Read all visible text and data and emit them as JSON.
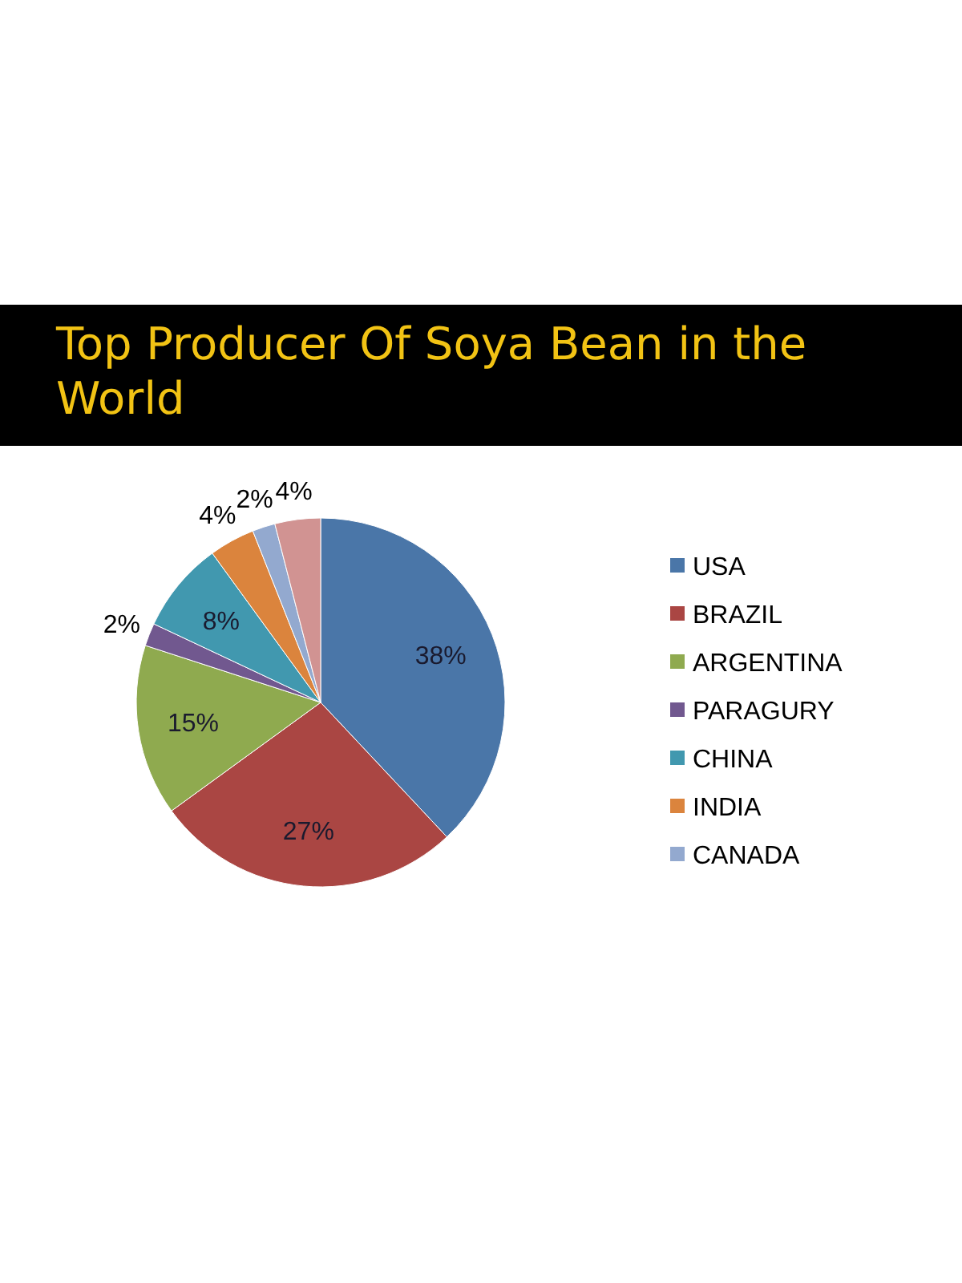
{
  "chart_data": {
    "type": "pie",
    "title": "Top Producer Of Soya Bean in the World",
    "categories": [
      "USA",
      "BRAZIL",
      "ARGENTINA",
      "PARAGURY",
      "CHINA",
      "INDIA",
      "CANADA",
      null
    ],
    "values": [
      38,
      27,
      15,
      2,
      8,
      4,
      2,
      4
    ],
    "colors": [
      "#4a76a8",
      "#aa4643",
      "#8faa4f",
      "#71588f",
      "#4198af",
      "#db843d",
      "#93a9cf",
      "#d19392"
    ],
    "value_labels": [
      "38%",
      "27%",
      "15%",
      "2%",
      "8%",
      "4%",
      "2%",
      "4%"
    ],
    "legend": "right"
  }
}
